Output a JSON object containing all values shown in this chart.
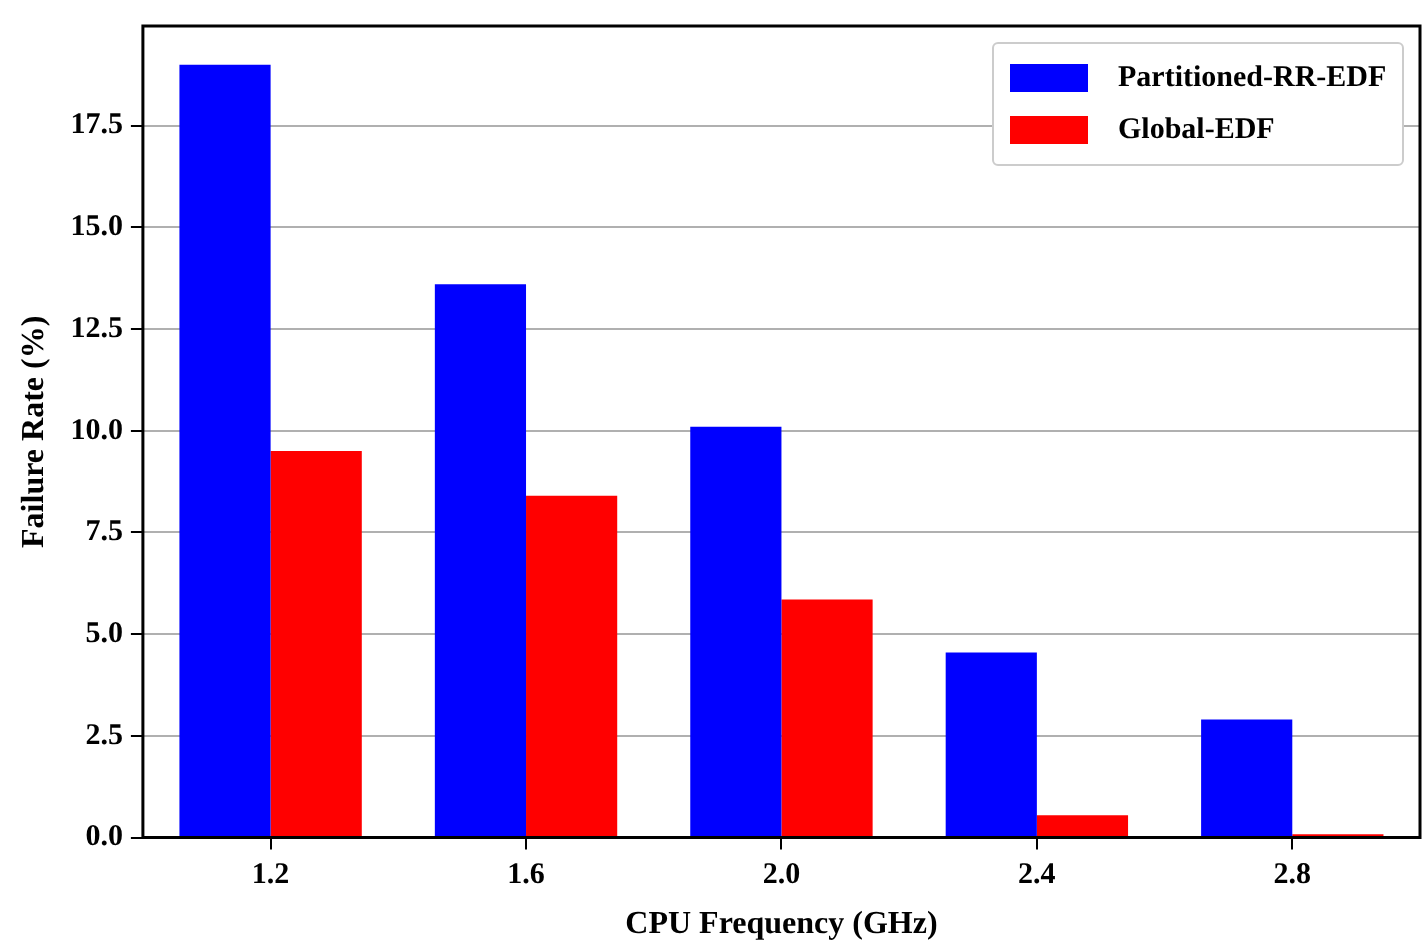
{
  "chart_data": {
    "type": "bar",
    "xlabel": "CPU Frequency (GHz)",
    "ylabel": "Failure Rate (%)",
    "categories": [
      "1.2",
      "1.6",
      "2.0",
      "2.4",
      "2.8"
    ],
    "series": [
      {
        "name": "Partitioned-RR-EDF",
        "color": "#0000ff",
        "values": [
          19.0,
          13.6,
          10.1,
          4.55,
          2.9
        ]
      },
      {
        "name": "Global-EDF",
        "color": "#ff0000",
        "values": [
          9.5,
          8.4,
          5.85,
          0.55,
          0.08
        ]
      }
    ],
    "ylim": [
      0,
      19.95
    ],
    "yticks": [
      {
        "value": 0,
        "label": "0.0"
      },
      {
        "value": 2.5,
        "label": "2.5"
      },
      {
        "value": 5,
        "label": "5.0"
      },
      {
        "value": 7.5,
        "label": "7.5"
      },
      {
        "value": 10,
        "label": "10.0"
      },
      {
        "value": 12.5,
        "label": "12.5"
      },
      {
        "value": 15,
        "label": "15.0"
      },
      {
        "value": 17.5,
        "label": "17.5"
      }
    ],
    "grid": "y",
    "legend": "top right"
  }
}
